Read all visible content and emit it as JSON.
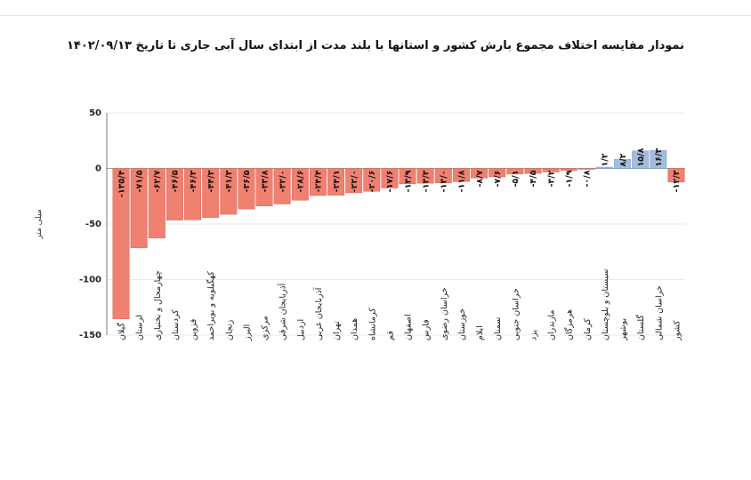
{
  "chart_data": {
    "type": "bar",
    "title": "نمودار مقایسه اختلاف مجموع بارش کشور و استانها با بلند مدت از ابتدای سال آبی جاری تا تاریخ ۱۴۰۲/۰۹/۱۳",
    "ylabel": "میلی متر",
    "xlabel": "",
    "ylim": [
      -150,
      50
    ],
    "yticks": [
      50,
      0,
      -50,
      -100,
      -150
    ],
    "ytick_labels": [
      "50",
      "0",
      "-50",
      "-100",
      "-150"
    ],
    "grid": true,
    "categories": [
      "گیلان",
      "لرستان",
      "چهارمحال و بختیاری",
      "کردستان",
      "قزوین",
      "کهگیلویه و بویراحمد",
      "زنجان",
      "البرز",
      "مرکزی",
      "آذربایجان شرقی",
      "اردبیل",
      "آذربایجان غربی",
      "تهران",
      "همدان",
      "کرمانشاه",
      "قم",
      "اصفهان",
      "فارس",
      "خراسان رضوی",
      "خوزستان",
      "ایلام",
      "سمنان",
      "خراسان جنوبی",
      "یزد",
      "مازندران",
      "هرمزگان",
      "کرمان",
      "سیستان و بلوچستان",
      "بوشهر",
      "گلستان",
      "خراسان شمالی",
      "کشور"
    ],
    "values": [
      -135.4,
      -71.5,
      -62.7,
      -46.5,
      -46.3,
      -44.3,
      -41.3,
      -36.5,
      -33.8,
      -32.0,
      -28.6,
      -24.4,
      -24.1,
      -22.0,
      -20.6,
      -17.6,
      -13.9,
      -13.3,
      -13.0,
      -11.8,
      -8.7,
      -7.6,
      -5.1,
      -4.5,
      -3.2,
      -1.9,
      -0.8,
      1.2,
      8.2,
      15.8,
      16.3,
      -12.3
    ],
    "labels": [
      "-۱۳۵/۴",
      "-۷۱/۵",
      "-۶۲/۷",
      "-۴۶/۵",
      "-۴۶/۳",
      "-۴۴/۳",
      "-۴۱/۳",
      "-۳۶/۵",
      "-۳۳/۸",
      "-۳۲/۰",
      "-۲۸/۶",
      "-۲۴/۴",
      "-۲۴/۱",
      "-۲۲/۰",
      "-۲۰/۶",
      "-۱۷/۶",
      "-۱۳/۹",
      "-۱۳/۳",
      "-۱۳/۰",
      "-۱۱/۸",
      "-۸/۷",
      "-۷/۶",
      "-۵/۱",
      "-۴/۵",
      "-۳/۲",
      "-۱/۹",
      "-۰/۸",
      "۱/۲",
      "۸/۲",
      "۱۵/۸",
      "۱۶/۳",
      "-۱۲/۳"
    ],
    "colors": {
      "negative": "#f08070",
      "positive": "#a4bddd",
      "negative_edge": "#c95a4a",
      "positive_edge": "#6d8fbd",
      "grid": "#d6d6d6",
      "axis": "#555555"
    }
  }
}
